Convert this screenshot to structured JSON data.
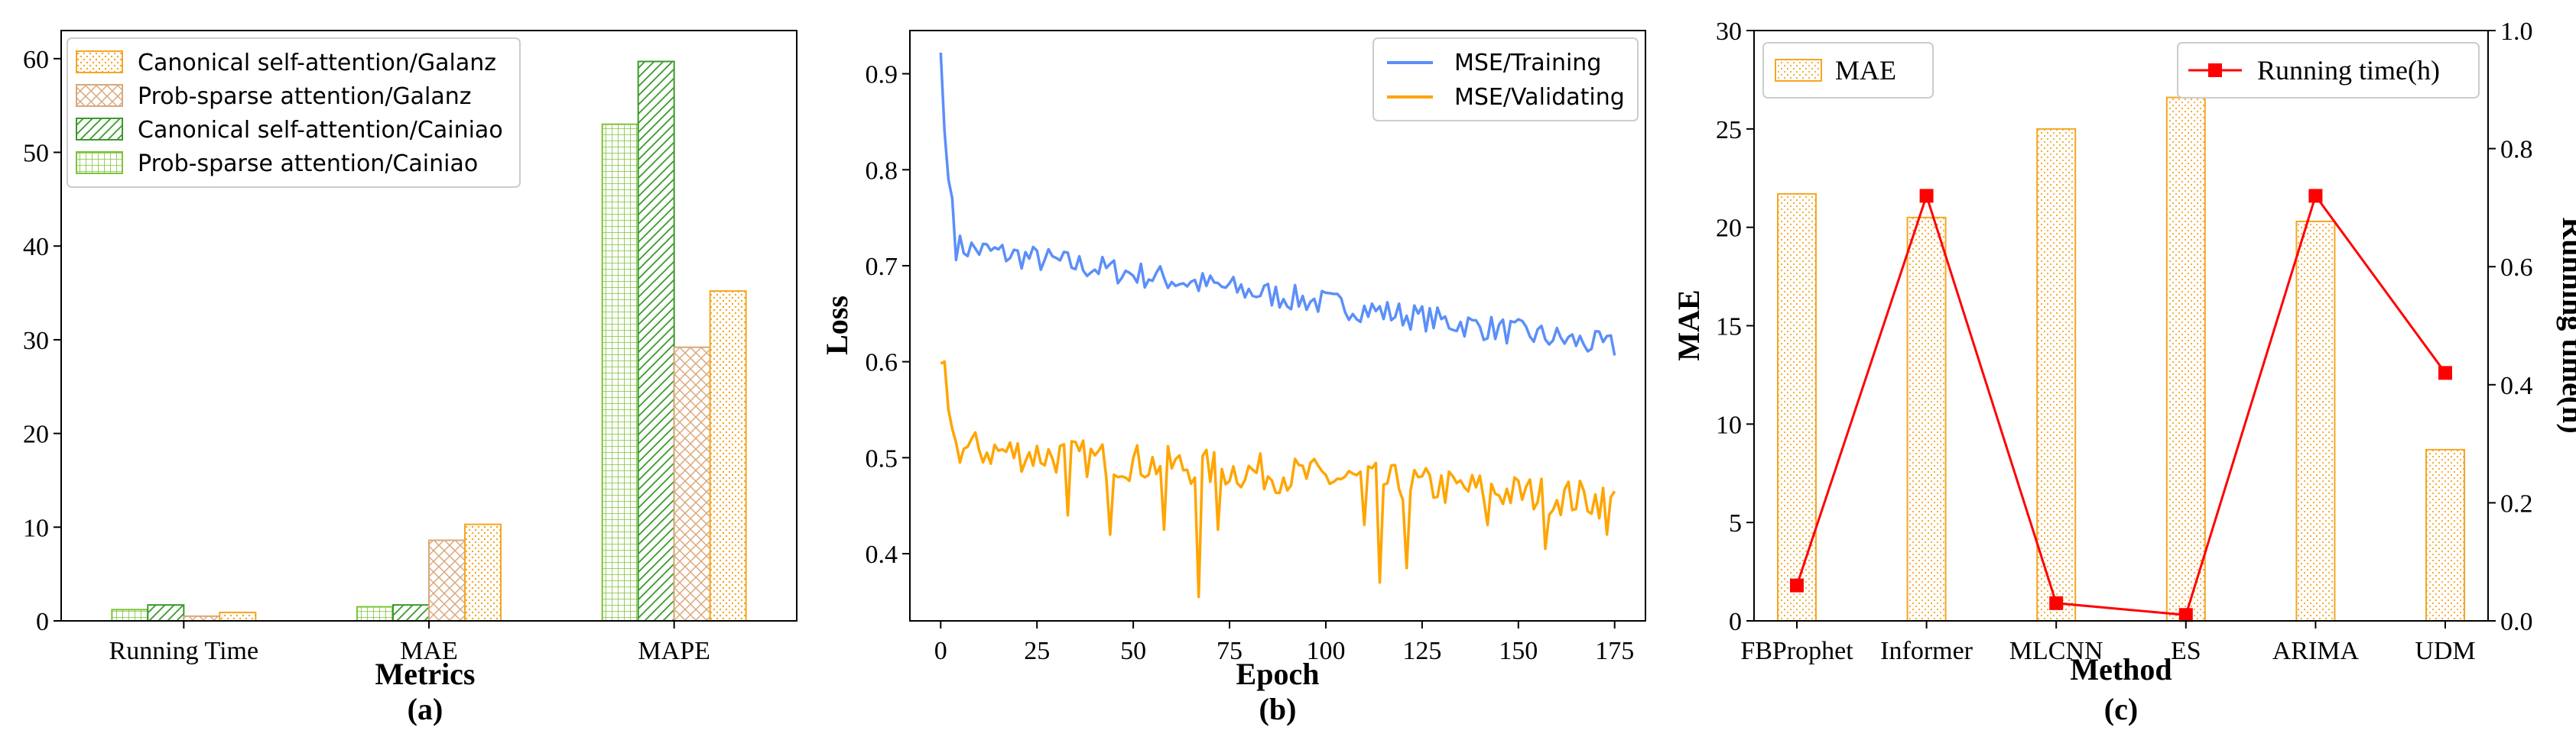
{
  "chart_data": [
    {
      "id": "a",
      "type": "bar",
      "title": "(a)",
      "xlabel": "Metrics",
      "ylabel": "",
      "ylim": [
        0,
        63
      ],
      "yticks": [
        0,
        10,
        20,
        30,
        40,
        50,
        60
      ],
      "categories": [
        "Running Time",
        "MAE",
        "MAPE"
      ],
      "legend_position": "top-left",
      "series": [
        {
          "name": "Prob-sparse attention/Cainiao",
          "values": [
            1.2,
            1.5,
            53.0
          ],
          "color": "#7cc436",
          "hatch": "grid"
        },
        {
          "name": "Canonical self-attention/Cainiao",
          "values": [
            1.7,
            1.7,
            59.7
          ],
          "color": "#3a9a2a",
          "hatch": "diag"
        },
        {
          "name": "Prob-sparse attention/Galanz",
          "values": [
            0.5,
            8.6,
            29.2
          ],
          "color": "#d9a87c",
          "hatch": "cross"
        },
        {
          "name": "Canonical self-attention/Galanz",
          "values": [
            0.9,
            10.3,
            35.2
          ],
          "color": "#f5a623",
          "hatch": "dots"
        }
      ],
      "legend_order": [
        3,
        2,
        1,
        0
      ]
    },
    {
      "id": "b",
      "type": "line",
      "title": "(b)",
      "xlabel": "Epoch",
      "ylabel": "Loss",
      "xlim": [
        -8,
        183
      ],
      "ylim": [
        0.33,
        0.945
      ],
      "xticks": [
        0,
        25,
        50,
        75,
        100,
        125,
        150,
        175
      ],
      "yticks": [
        0.4,
        0.5,
        0.6,
        0.7,
        0.8,
        0.9
      ],
      "ytick_labels": [
        "0.4",
        "0.5",
        "0.6",
        "0.7",
        "0.8",
        "0.9"
      ],
      "legend_position": "top-right",
      "series": [
        {
          "name": "MSE/Training",
          "color": "#5b8ff9",
          "start": 0.922,
          "end": 0.615
        },
        {
          "name": "MSE/Validating",
          "color": "#ffa500",
          "start": 0.598,
          "end": 0.455
        }
      ]
    },
    {
      "id": "c",
      "type": "bar+line",
      "title": "(c)",
      "xlabel": "Method",
      "ylabel": "MAE",
      "y2label": "Running time(h)",
      "ylim": [
        0,
        30
      ],
      "y2lim": [
        0,
        1.0
      ],
      "yticks": [
        0,
        5,
        10,
        15,
        20,
        25,
        30
      ],
      "y2ticks": [
        0.0,
        0.2,
        0.4,
        0.6,
        0.8,
        1.0
      ],
      "y2tick_labels": [
        "0.0",
        "0.2",
        "0.4",
        "0.6",
        "0.8",
        "1.0"
      ],
      "categories": [
        "FBProphet",
        "Informer",
        "MLCNN",
        "ES",
        "ARIMA",
        "UDM"
      ],
      "bar_series": {
        "name": "MAE",
        "values": [
          21.7,
          20.5,
          25.0,
          26.6,
          20.3,
          8.7
        ],
        "color": "#f5a623"
      },
      "line_series": {
        "name": "Running time(h)",
        "values": [
          0.06,
          0.72,
          0.03,
          0.01,
          0.72,
          0.42
        ],
        "color": "#ff0000"
      }
    }
  ]
}
